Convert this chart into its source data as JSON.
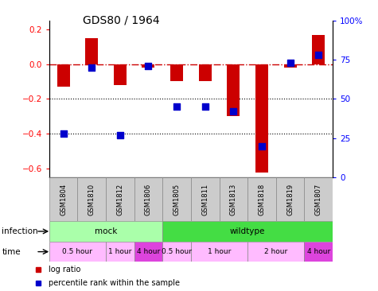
{
  "title": "GDS80 / 1964",
  "samples": [
    "GSM1804",
    "GSM1810",
    "GSM1812",
    "GSM1806",
    "GSM1805",
    "GSM1811",
    "GSM1813",
    "GSM1818",
    "GSM1819",
    "GSM1807"
  ],
  "log_ratio": [
    -0.13,
    0.15,
    -0.12,
    -0.02,
    -0.1,
    -0.1,
    -0.3,
    -0.62,
    -0.02,
    0.165
  ],
  "percentile": [
    28,
    70,
    27,
    71,
    45,
    45,
    42,
    20,
    73,
    78
  ],
  "ylim_left": [
    -0.65,
    0.25
  ],
  "ylim_right": [
    0,
    100
  ],
  "bar_color": "#cc0000",
  "dot_color": "#0000cc",
  "hline_color": "#cc0000",
  "dotted_lines": [
    -0.2,
    -0.4
  ],
  "infection_groups": [
    {
      "label": "mock",
      "start": 0,
      "end": 4,
      "color": "#aaffaa"
    },
    {
      "label": "wildtype",
      "start": 4,
      "end": 10,
      "color": "#44dd44"
    }
  ],
  "time_groups": [
    {
      "label": "0.5 hour",
      "start": 0,
      "end": 2,
      "color": "#ffbbff"
    },
    {
      "label": "1 hour",
      "start": 2,
      "end": 3,
      "color": "#ffbbff"
    },
    {
      "label": "4 hour",
      "start": 3,
      "end": 4,
      "color": "#dd44dd"
    },
    {
      "label": "0.5 hour",
      "start": 4,
      "end": 5,
      "color": "#ffbbff"
    },
    {
      "label": "1 hour",
      "start": 5,
      "end": 7,
      "color": "#ffbbff"
    },
    {
      "label": "2 hour",
      "start": 7,
      "end": 9,
      "color": "#ffbbff"
    },
    {
      "label": "4 hour",
      "start": 9,
      "end": 10,
      "color": "#dd44dd"
    }
  ],
  "right_yticks": [
    0,
    25,
    50,
    75,
    100
  ],
  "right_yticklabels": [
    "0",
    "25",
    "50",
    "75",
    "100%"
  ],
  "left_yticks": [
    -0.6,
    -0.4,
    -0.2,
    0.0,
    0.2
  ],
  "bar_width": 0.45,
  "dot_size": 30,
  "legend_items": [
    {
      "label": "log ratio",
      "color": "#cc0000"
    },
    {
      "label": "percentile rank within the sample",
      "color": "#0000cc"
    }
  ]
}
